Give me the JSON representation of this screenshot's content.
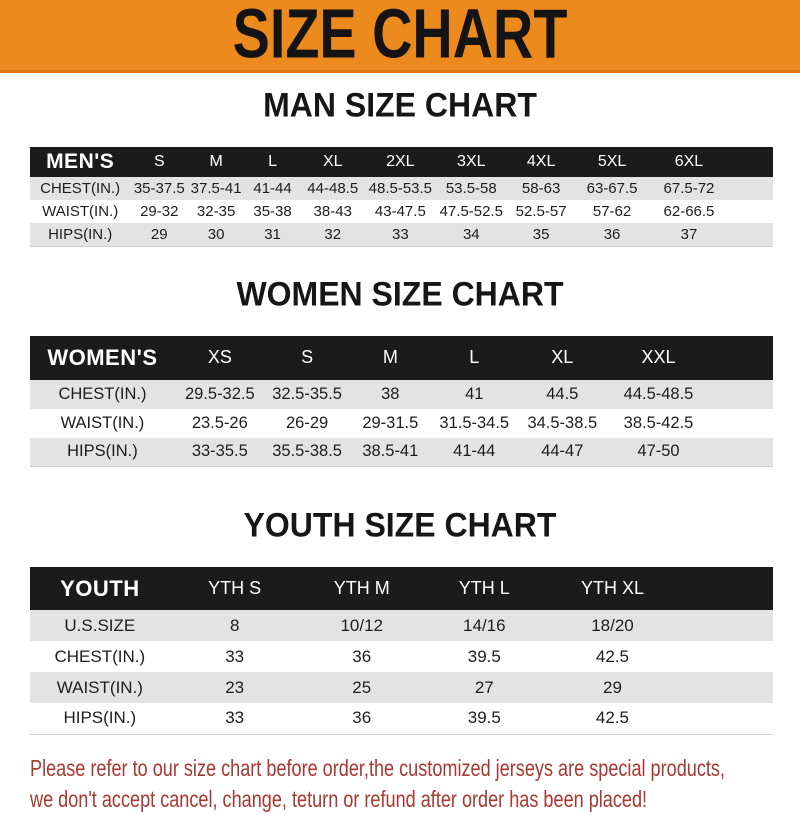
{
  "banner": {
    "title": "SIZE CHART"
  },
  "sections": [
    {
      "heading": "MAN SIZE CHART",
      "table": {
        "header_label": "MEN'S",
        "sizes": [
          "S",
          "M",
          "L",
          "XL",
          "2XL",
          "3XL",
          "4XL",
          "5XL",
          "6XL"
        ],
        "rows": [
          {
            "label": "CHEST(IN.)",
            "values": [
              "35-37.5",
              "37.5-41",
              "41-44",
              "44-48.5",
              "48.5-53.5",
              "53.5-58",
              "58-63",
              "63-67.5",
              "67.5-72"
            ]
          },
          {
            "label": "WAIST(IN.)",
            "values": [
              "29-32",
              "32-35",
              "35-38",
              "38-43",
              "43-47.5",
              "47.5-52.5",
              "52.5-57",
              "57-62",
              "62-66.5"
            ]
          },
          {
            "label": "HIPS(IN.)",
            "values": [
              "29",
              "30",
              "31",
              "32",
              "33",
              "34",
              "35",
              "36",
              "37"
            ]
          }
        ]
      }
    },
    {
      "heading": "WOMEN SIZE CHART",
      "table": {
        "header_label": "WOMEN'S",
        "sizes": [
          "XS",
          "S",
          "M",
          "L",
          "XL",
          "XXL"
        ],
        "rows": [
          {
            "label": "CHEST(IN.)",
            "values": [
              "29.5-32.5",
              "32.5-35.5",
              "38",
              "41",
              "44.5",
              "44.5-48.5"
            ]
          },
          {
            "label": "WAIST(IN.)",
            "values": [
              "23.5-26",
              "26-29",
              "29-31.5",
              "31.5-34.5",
              "34.5-38.5",
              "38.5-42.5"
            ]
          },
          {
            "label": "HIPS(IN.)",
            "values": [
              "33-35.5",
              "35.5-38.5",
              "38.5-41",
              "41-44",
              "44-47",
              "47-50"
            ]
          }
        ]
      }
    },
    {
      "heading": "YOUTH SIZE CHART",
      "table": {
        "header_label": "YOUTH",
        "sizes": [
          "YTH S",
          "YTH M",
          "YTH L",
          "YTH XL"
        ],
        "rows": [
          {
            "label": "U.S.SIZE",
            "values": [
              "8",
              "10/12",
              "14/16",
              "18/20"
            ]
          },
          {
            "label": "CHEST(IN.)",
            "values": [
              "33",
              "36",
              "39.5",
              "42.5"
            ]
          },
          {
            "label": "WAIST(IN.)",
            "values": [
              "23",
              "25",
              "27",
              "29"
            ]
          },
          {
            "label": "HIPS(IN.)",
            "values": [
              "33",
              "36",
              "39.5",
              "42.5"
            ]
          }
        ]
      }
    }
  ],
  "footer": {
    "line1": "Please refer to our size chart before order,the customized jerseys are special products,",
    "line2": "we don't accept cancel, change, teturn or refund after order has been placed!"
  },
  "colors": {
    "banner_orange": "#ED8A1D",
    "banner_edge_orange": "#D9760F",
    "table_header_black": "#1B1B1B",
    "row_stripe_gray": "#E3E3E3",
    "warning_text_red": "#A93832"
  }
}
